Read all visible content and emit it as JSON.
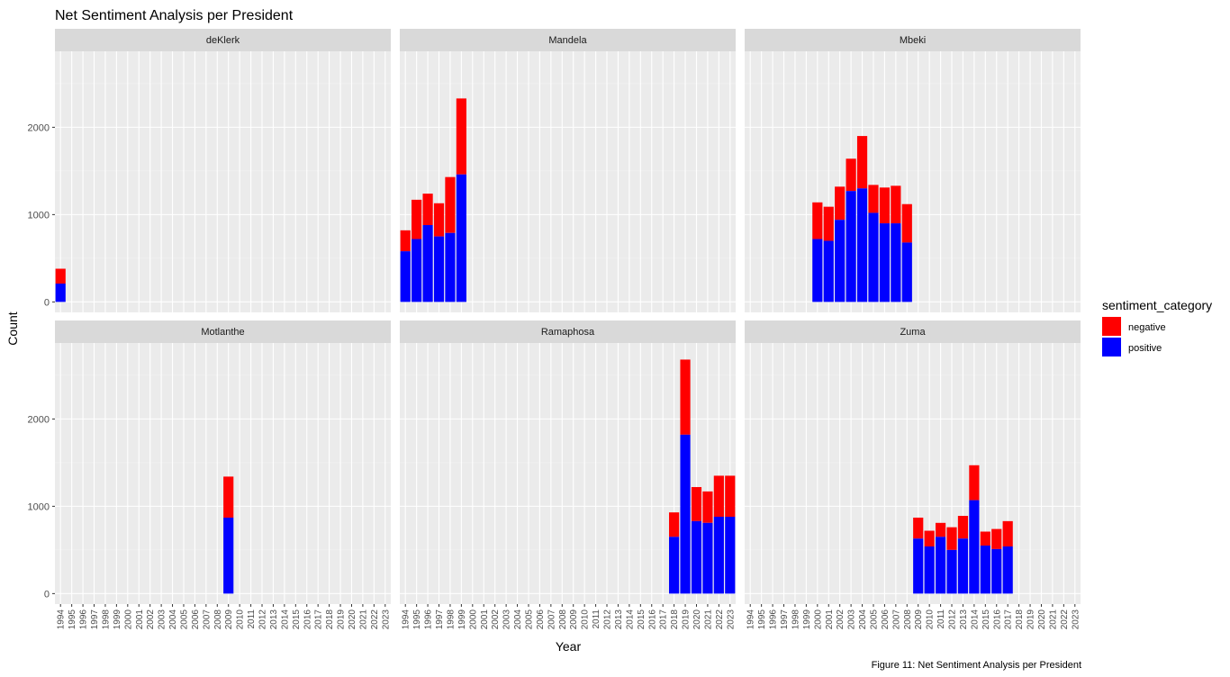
{
  "chart_data": {
    "type": "bar",
    "stacked": true,
    "facet": "president",
    "title": "Net Sentiment Analysis per President",
    "xlabel": "Year",
    "ylabel": "Count",
    "caption": "Figure 11: Net Sentiment Analysis per President",
    "legend_title": "sentiment_category",
    "legend_position": "right",
    "grid": true,
    "ylim": [
      -120,
      2870
    ],
    "y_ticks": [
      0,
      1000,
      2000
    ],
    "x_ticks": [
      "1994",
      "1995",
      "1996",
      "1997",
      "1998",
      "1999",
      "2000",
      "2001",
      "2002",
      "2003",
      "2004",
      "2005",
      "2006",
      "2007",
      "2008",
      "2009",
      "2010",
      "2011",
      "2012",
      "2013",
      "2014",
      "2015",
      "2016",
      "2017",
      "2018",
      "2019",
      "2020",
      "2021",
      "2022",
      "2023"
    ],
    "categories": [
      "negative",
      "positive"
    ],
    "colors": {
      "negative": "#ff0000",
      "positive": "#0000ff"
    },
    "panels": [
      {
        "name": "deKlerk",
        "bars": [
          {
            "year": 1994,
            "positive": 210,
            "negative": 170
          }
        ]
      },
      {
        "name": "Mandela",
        "bars": [
          {
            "year": 1994,
            "positive": 580,
            "negative": 240
          },
          {
            "year": 1995,
            "positive": 720,
            "negative": 450
          },
          {
            "year": 1996,
            "positive": 880,
            "negative": 360
          },
          {
            "year": 1997,
            "positive": 750,
            "negative": 380
          },
          {
            "year": 1998,
            "positive": 790,
            "negative": 640
          },
          {
            "year": 1999,
            "positive": 1460,
            "negative": 870
          }
        ]
      },
      {
        "name": "Mbeki",
        "bars": [
          {
            "year": 2000,
            "positive": 720,
            "negative": 420
          },
          {
            "year": 2001,
            "positive": 700,
            "negative": 390
          },
          {
            "year": 2002,
            "positive": 940,
            "negative": 380
          },
          {
            "year": 2003,
            "positive": 1270,
            "negative": 370
          },
          {
            "year": 2004,
            "positive": 1300,
            "negative": 600
          },
          {
            "year": 2005,
            "positive": 1020,
            "negative": 320
          },
          {
            "year": 2006,
            "positive": 900,
            "negative": 410
          },
          {
            "year": 2007,
            "positive": 900,
            "negative": 430
          },
          {
            "year": 2008,
            "positive": 680,
            "negative": 440
          }
        ]
      },
      {
        "name": "Motlanthe",
        "bars": [
          {
            "year": 2009,
            "positive": 870,
            "negative": 470
          }
        ]
      },
      {
        "name": "Ramaphosa",
        "bars": [
          {
            "year": 2018,
            "positive": 650,
            "negative": 280
          },
          {
            "year": 2019,
            "positive": 1820,
            "negative": 860
          },
          {
            "year": 2020,
            "positive": 830,
            "negative": 390
          },
          {
            "year": 2021,
            "positive": 810,
            "negative": 360
          },
          {
            "year": 2022,
            "positive": 880,
            "negative": 470
          },
          {
            "year": 2023,
            "positive": 880,
            "negative": 470
          }
        ]
      },
      {
        "name": "Zuma",
        "bars": [
          {
            "year": 2009,
            "positive": 630,
            "negative": 240
          },
          {
            "year": 2010,
            "positive": 540,
            "negative": 180
          },
          {
            "year": 2011,
            "positive": 650,
            "negative": 160
          },
          {
            "year": 2012,
            "positive": 500,
            "negative": 260
          },
          {
            "year": 2013,
            "positive": 630,
            "negative": 260
          },
          {
            "year": 2014,
            "positive": 1070,
            "negative": 400
          },
          {
            "year": 2015,
            "positive": 550,
            "negative": 160
          },
          {
            "year": 2016,
            "positive": 510,
            "negative": 230
          },
          {
            "year": 2017,
            "positive": 540,
            "negative": 290
          }
        ]
      }
    ]
  }
}
